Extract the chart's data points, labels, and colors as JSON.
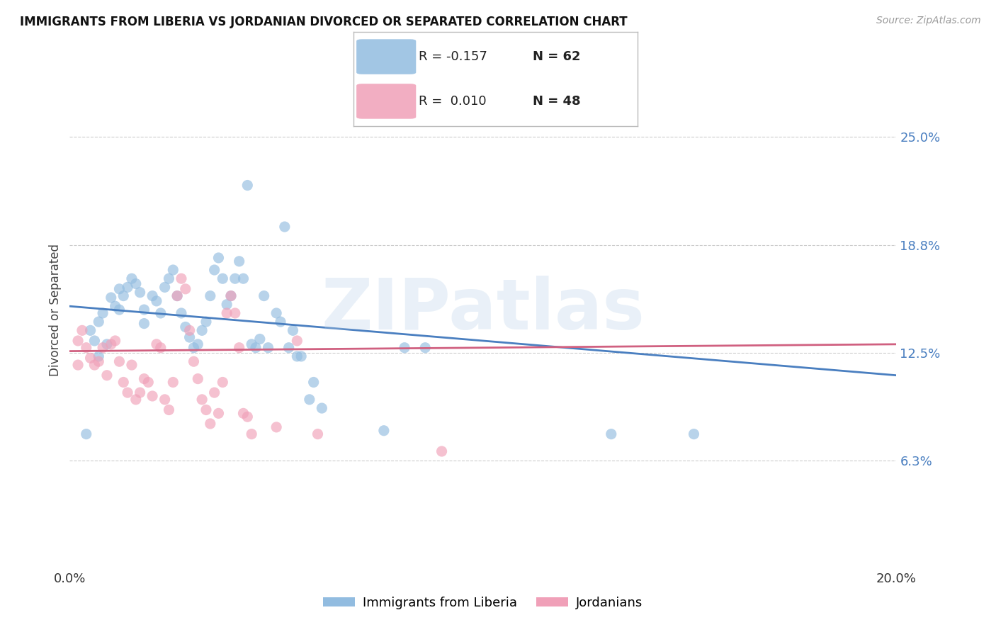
{
  "title": "IMMIGRANTS FROM LIBERIA VS JORDANIAN DIVORCED OR SEPARATED CORRELATION CHART",
  "source": "Source: ZipAtlas.com",
  "ylabel": "Divorced or Separated",
  "xlim": [
    0.0,
    0.2
  ],
  "ylim": [
    0.0,
    0.3
  ],
  "ytick_positions": [
    0.0625,
    0.125,
    0.1875,
    0.25
  ],
  "ytick_labels": [
    "6.3%",
    "12.5%",
    "18.8%",
    "25.0%"
  ],
  "xtick_positions": [
    0.0,
    0.05,
    0.1,
    0.15,
    0.2
  ],
  "xtick_labels": [
    "0.0%",
    "",
    "",
    "",
    "20.0%"
  ],
  "watermark": "ZIPatlas",
  "blue_color": "#92bce0",
  "pink_color": "#f0a0b8",
  "blue_line_color": "#4a7fc0",
  "pink_line_color": "#d06080",
  "scatter_alpha": 0.65,
  "scatter_size": 120,
  "blue_scatter": [
    [
      0.005,
      0.138
    ],
    [
      0.006,
      0.132
    ],
    [
      0.007,
      0.143
    ],
    [
      0.008,
      0.148
    ],
    [
      0.009,
      0.13
    ],
    [
      0.01,
      0.157
    ],
    [
      0.011,
      0.152
    ],
    [
      0.012,
      0.162
    ],
    [
      0.012,
      0.15
    ],
    [
      0.013,
      0.158
    ],
    [
      0.014,
      0.163
    ],
    [
      0.015,
      0.168
    ],
    [
      0.016,
      0.165
    ],
    [
      0.017,
      0.16
    ],
    [
      0.018,
      0.15
    ],
    [
      0.018,
      0.142
    ],
    [
      0.02,
      0.158
    ],
    [
      0.021,
      0.155
    ],
    [
      0.022,
      0.148
    ],
    [
      0.023,
      0.163
    ],
    [
      0.024,
      0.168
    ],
    [
      0.025,
      0.173
    ],
    [
      0.026,
      0.158
    ],
    [
      0.027,
      0.148
    ],
    [
      0.028,
      0.14
    ],
    [
      0.029,
      0.134
    ],
    [
      0.03,
      0.128
    ],
    [
      0.031,
      0.13
    ],
    [
      0.032,
      0.138
    ],
    [
      0.033,
      0.143
    ],
    [
      0.034,
      0.158
    ],
    [
      0.035,
      0.173
    ],
    [
      0.036,
      0.18
    ],
    [
      0.037,
      0.168
    ],
    [
      0.038,
      0.153
    ],
    [
      0.039,
      0.158
    ],
    [
      0.04,
      0.168
    ],
    [
      0.041,
      0.178
    ],
    [
      0.042,
      0.168
    ],
    [
      0.043,
      0.222
    ],
    [
      0.044,
      0.13
    ],
    [
      0.045,
      0.128
    ],
    [
      0.046,
      0.133
    ],
    [
      0.047,
      0.158
    ],
    [
      0.048,
      0.128
    ],
    [
      0.05,
      0.148
    ],
    [
      0.051,
      0.143
    ],
    [
      0.052,
      0.198
    ],
    [
      0.053,
      0.128
    ],
    [
      0.054,
      0.138
    ],
    [
      0.055,
      0.123
    ],
    [
      0.056,
      0.123
    ],
    [
      0.058,
      0.098
    ],
    [
      0.059,
      0.108
    ],
    [
      0.061,
      0.093
    ],
    [
      0.076,
      0.08
    ],
    [
      0.081,
      0.128
    ],
    [
      0.086,
      0.128
    ],
    [
      0.131,
      0.078
    ],
    [
      0.151,
      0.078
    ],
    [
      0.004,
      0.078
    ],
    [
      0.007,
      0.123
    ]
  ],
  "pink_scatter": [
    [
      0.002,
      0.132
    ],
    [
      0.003,
      0.138
    ],
    [
      0.004,
      0.128
    ],
    [
      0.005,
      0.122
    ],
    [
      0.006,
      0.118
    ],
    [
      0.007,
      0.12
    ],
    [
      0.008,
      0.128
    ],
    [
      0.009,
      0.112
    ],
    [
      0.01,
      0.13
    ],
    [
      0.011,
      0.132
    ],
    [
      0.012,
      0.12
    ],
    [
      0.013,
      0.108
    ],
    [
      0.014,
      0.102
    ],
    [
      0.015,
      0.118
    ],
    [
      0.016,
      0.098
    ],
    [
      0.017,
      0.102
    ],
    [
      0.018,
      0.11
    ],
    [
      0.019,
      0.108
    ],
    [
      0.02,
      0.1
    ],
    [
      0.021,
      0.13
    ],
    [
      0.022,
      0.128
    ],
    [
      0.023,
      0.098
    ],
    [
      0.024,
      0.092
    ],
    [
      0.025,
      0.108
    ],
    [
      0.026,
      0.158
    ],
    [
      0.027,
      0.168
    ],
    [
      0.028,
      0.162
    ],
    [
      0.029,
      0.138
    ],
    [
      0.03,
      0.12
    ],
    [
      0.031,
      0.11
    ],
    [
      0.032,
      0.098
    ],
    [
      0.033,
      0.092
    ],
    [
      0.034,
      0.084
    ],
    [
      0.035,
      0.102
    ],
    [
      0.036,
      0.09
    ],
    [
      0.037,
      0.108
    ],
    [
      0.038,
      0.148
    ],
    [
      0.039,
      0.158
    ],
    [
      0.04,
      0.148
    ],
    [
      0.041,
      0.128
    ],
    [
      0.042,
      0.09
    ],
    [
      0.043,
      0.088
    ],
    [
      0.044,
      0.078
    ],
    [
      0.05,
      0.082
    ],
    [
      0.055,
      0.132
    ],
    [
      0.06,
      0.078
    ],
    [
      0.09,
      0.068
    ],
    [
      0.002,
      0.118
    ]
  ],
  "blue_line_x": [
    0.0,
    0.2
  ],
  "blue_line_y": [
    0.152,
    0.112
  ],
  "pink_line_x": [
    0.0,
    0.2
  ],
  "pink_line_y": [
    0.126,
    0.13
  ],
  "background_color": "#ffffff",
  "grid_color": "#cccccc",
  "legend_label_blue": "Immigrants from Liberia",
  "legend_label_pink": "Jordanians",
  "legend_R_blue": "R = -0.157",
  "legend_N_blue": "N = 62",
  "legend_R_pink": "R =  0.010",
  "legend_N_pink": "N = 48",
  "ytick_color": "#4a7fc0",
  "xtick_color": "#333333"
}
